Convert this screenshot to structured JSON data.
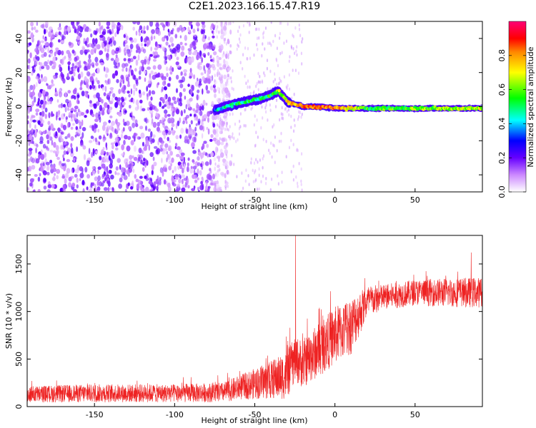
{
  "figure_title": "C2E1.2023.166.15.47.R19",
  "chart_data": [
    {
      "type": "heatmap",
      "xlabel": "Height of straight line (km)",
      "ylabel": "Frequency (Hz)",
      "xlim": [
        -192,
        92
      ],
      "ylim": [
        -50,
        50
      ],
      "x_ticks": [
        -150,
        -100,
        -50,
        0,
        50
      ],
      "y_ticks": [
        -40,
        -20,
        0,
        20,
        40
      ],
      "colorbar": {
        "label": "Normalized spectral amplitude",
        "range": [
          0,
          1
        ],
        "ticks": [
          0.0,
          0.2,
          0.4,
          0.6,
          0.8
        ]
      },
      "features": [
        {
          "name": "noise",
          "x_range": [
            -192,
            -75
          ],
          "freq_range": [
            -50,
            50
          ],
          "amplitude": 0.12
        },
        {
          "name": "signal-trace",
          "x": [
            -75,
            -60,
            -45,
            -35,
            -30,
            -20,
            -10,
            0,
            20,
            50,
            92
          ],
          "freq": [
            -2,
            2,
            5,
            9,
            3,
            0,
            0,
            -1,
            -1,
            -1,
            -1
          ],
          "amplitude": [
            0.4,
            0.5,
            0.5,
            0.6,
            0.7,
            0.85,
            0.85,
            0.85,
            0.55,
            0.6,
            0.65
          ]
        }
      ]
    },
    {
      "type": "line",
      "xlabel": "Height of straight line (km)",
      "ylabel": "SNR (10 * v/v)",
      "xlim": [
        -192,
        92
      ],
      "ylim": [
        0,
        1800
      ],
      "x_ticks": [
        -150,
        -100,
        -50,
        0,
        50
      ],
      "y_ticks": [
        0,
        500,
        1000,
        1500
      ],
      "series": [
        {
          "color": "#ee2222",
          "x": [
            -192,
            -150,
            -100,
            -70,
            -55,
            -40,
            -30,
            -25,
            -20,
            -10,
            0,
            10,
            20,
            30,
            50,
            70,
            92
          ],
          "mean": [
            130,
            140,
            140,
            150,
            220,
            280,
            330,
            500,
            450,
            600,
            750,
            850,
            1100,
            1150,
            1200,
            1200,
            1200
          ],
          "spread": [
            110,
            120,
            120,
            130,
            180,
            250,
            320,
            300,
            320,
            360,
            380,
            380,
            220,
            170,
            170,
            190,
            200
          ],
          "peaks": [
            {
              "x": -24.5,
              "y": 1800
            },
            {
              "x": 85,
              "y": 1620
            }
          ]
        }
      ]
    }
  ]
}
